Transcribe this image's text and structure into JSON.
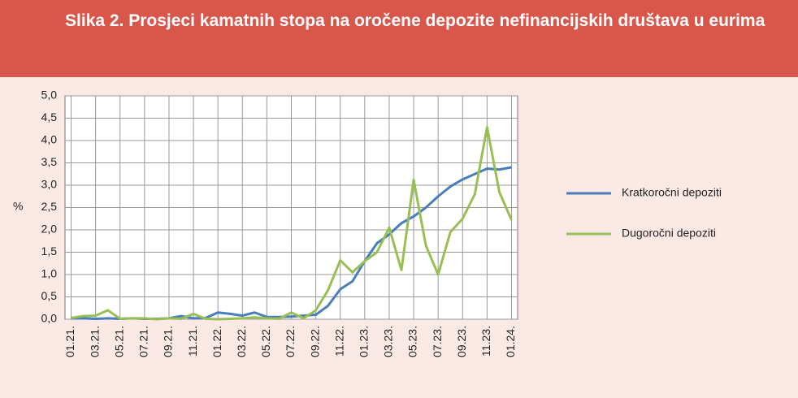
{
  "chart_data": {
    "type": "line",
    "title": "Slika 2. Prosjeci kamatnih stopa na oročene depozite nefinancijskih društava u eurima",
    "ylabel": "%",
    "categories": [
      "01.21.",
      null,
      "03.21.",
      null,
      "05.21.",
      null,
      "07.21.",
      null,
      "09.21.",
      null,
      "11.21.",
      null,
      "01.22.",
      null,
      "03.22.",
      null,
      "05.22.",
      null,
      "07.22.",
      null,
      "09.22.",
      null,
      "11.22.",
      null,
      "01.23.",
      null,
      "03.23.",
      null,
      "05.23.",
      null,
      "07.23.",
      null,
      "09.23.",
      null,
      "11.23.",
      null,
      "01.24."
    ],
    "series": [
      {
        "name": "Kratkoročni depoziti",
        "color": "#4a7ebb",
        "values": [
          0.02,
          0.02,
          0.01,
          0.02,
          0.01,
          0.02,
          0.01,
          0.01,
          0.02,
          0.07,
          0.02,
          0.03,
          0.15,
          0.12,
          0.08,
          0.15,
          0.05,
          0.05,
          0.06,
          0.08,
          0.1,
          0.3,
          0.67,
          0.85,
          1.3,
          1.7,
          1.9,
          2.15,
          2.3,
          2.5,
          2.75,
          2.97,
          3.13,
          3.25,
          3.37,
          3.35,
          3.4
        ]
      },
      {
        "name": "Dugoročni depoziti",
        "color": "#98bf55",
        "values": [
          0.03,
          0.07,
          0.08,
          0.2,
          0.01,
          0.02,
          0.02,
          0.0,
          0.02,
          0.01,
          0.12,
          0.01,
          0.0,
          0.01,
          0.02,
          0.04,
          0.02,
          0.01,
          0.15,
          0.02,
          0.2,
          0.65,
          1.32,
          1.05,
          1.3,
          1.5,
          2.05,
          1.1,
          3.12,
          1.65,
          1.0,
          1.95,
          2.25,
          2.8,
          4.3,
          2.85,
          2.22
        ]
      }
    ],
    "ylim": [
      0,
      5
    ],
    "yticks": [
      {
        "value": 0,
        "label": "0,0"
      },
      {
        "value": 0.5,
        "label": "0,5"
      },
      {
        "value": 1,
        "label": "1,0"
      },
      {
        "value": 1.5,
        "label": "1,5"
      },
      {
        "value": 2,
        "label": "2,0"
      },
      {
        "value": 2.5,
        "label": "2,5"
      },
      {
        "value": 3,
        "label": "3,0"
      },
      {
        "value": 3.5,
        "label": "3,5"
      },
      {
        "value": 4,
        "label": "4,0"
      },
      {
        "value": 4.5,
        "label": "4,5"
      },
      {
        "value": 5,
        "label": "5,0"
      }
    ],
    "grid": true,
    "legend": "right"
  }
}
